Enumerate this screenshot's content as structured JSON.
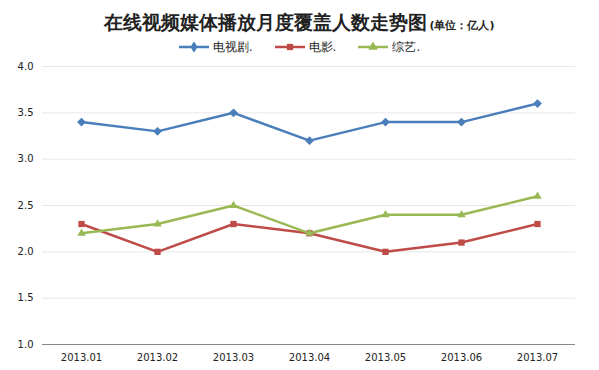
{
  "chart_data": {
    "type": "line",
    "title": "在线视频媒体播放月度覆盖人数走势图",
    "subtitle": "(单位：亿人)",
    "categories": [
      "2013.01",
      "2013.02",
      "2013.03",
      "2013.04",
      "2013.05",
      "2013.06",
      "2013.07"
    ],
    "series": [
      {
        "name": "电视剧.",
        "color": "#4a7ebb",
        "marker": "diamond",
        "values": [
          3.4,
          3.3,
          3.5,
          3.2,
          3.4,
          3.4,
          3.6
        ]
      },
      {
        "name": "电影.",
        "color": "#be4b48",
        "marker": "square",
        "values": [
          2.3,
          2.0,
          2.3,
          2.2,
          2.0,
          2.1,
          2.3
        ]
      },
      {
        "name": "综艺.",
        "color": "#98b954",
        "marker": "triangle",
        "values": [
          2.2,
          2.3,
          2.5,
          2.2,
          2.4,
          2.4,
          2.6
        ]
      }
    ],
    "ylim": [
      1,
      4
    ],
    "yticks": [
      {
        "value": 1,
        "label": "1.0"
      },
      {
        "value": 1.5,
        "label": "1.5"
      },
      {
        "value": 2,
        "label": "2.0"
      },
      {
        "value": 2.5,
        "label": "2.5"
      },
      {
        "value": 3,
        "label": "3.0"
      },
      {
        "value": 3.5,
        "label": "3.5"
      },
      {
        "value": 4,
        "label": "4.0"
      }
    ],
    "grid": true,
    "legend": "top"
  }
}
